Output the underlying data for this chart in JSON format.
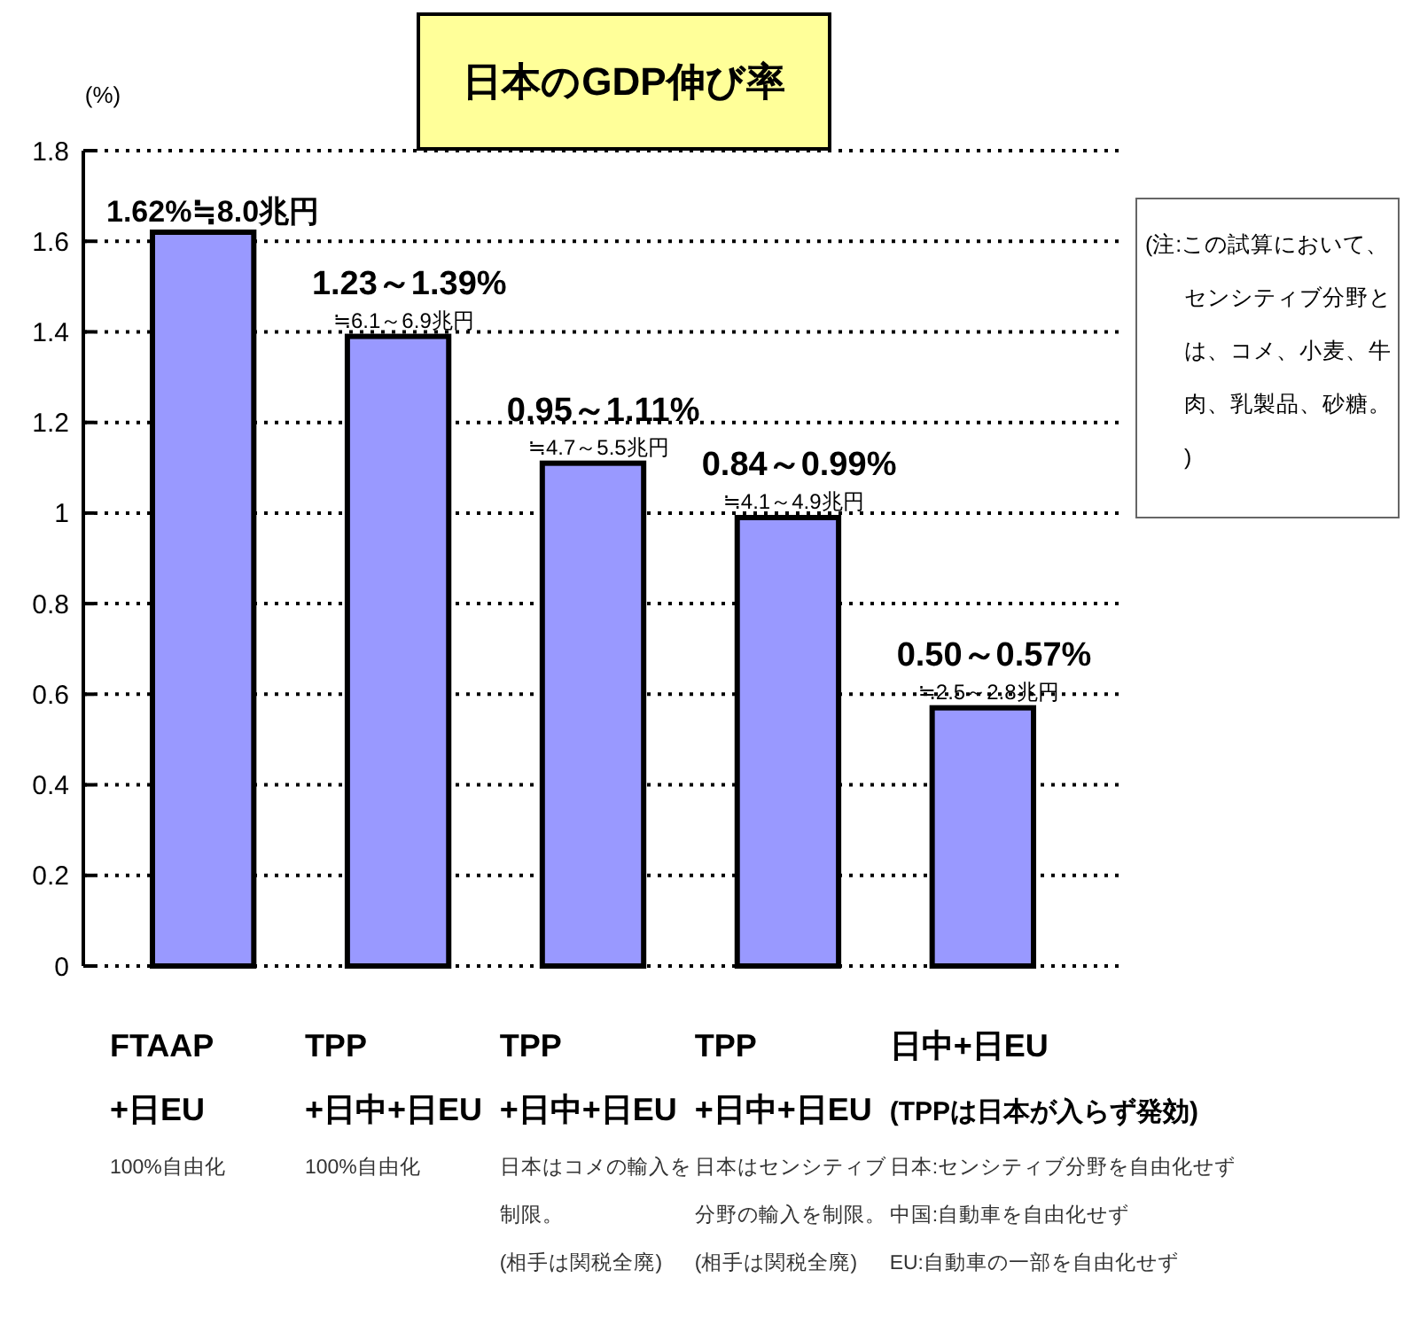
{
  "chart_data": {
    "type": "bar",
    "title": "日本のGDP伸び率",
    "ylabel": "(%)",
    "categories": [
      "FTAAP\n+日EU\n100%自由化",
      "TPP\n+日中+日EU\n100%自由化",
      "TPP\n+日中+日EU\n日本はコメの輸入を制限。\n(相手は関税全廃)",
      "TPP\n+日中+日EU\n日本はセンシティブ分野の輸入を制限。\n(相手は関税全廃)",
      "日中+日EU\n(TPPは日本が入らず発効)"
    ],
    "values": [
      1.62,
      1.39,
      1.11,
      0.99,
      0.57
    ],
    "value_labels": [
      "1.62%≒8.0兆円",
      "1.23～1.39%\n≒6.1～6.9兆円",
      "0.95～1.11%\n≒4.7～5.5兆円",
      "0.84～0.99%\n≒4.1～4.9兆円",
      "0.50～0.57%\n≒2.5～2.8兆円"
    ],
    "color": "#9999ff",
    "ylim": [
      0,
      1.8
    ],
    "yticks": [
      0,
      0.2,
      0.4,
      0.6,
      0.8,
      1,
      1.2,
      1.4,
      1.6,
      1.8
    ],
    "grid": "y",
    "annotations": [
      "日本:センシティブ分野を自由化せず",
      "中国:自動車を自由化せず",
      "EU:自動車の一部を自由化せず",
      "(注:この試算において、センシティブ分野とは、コメ、小麦、牛肉、乳製品、砂糖。)"
    ]
  }
}
